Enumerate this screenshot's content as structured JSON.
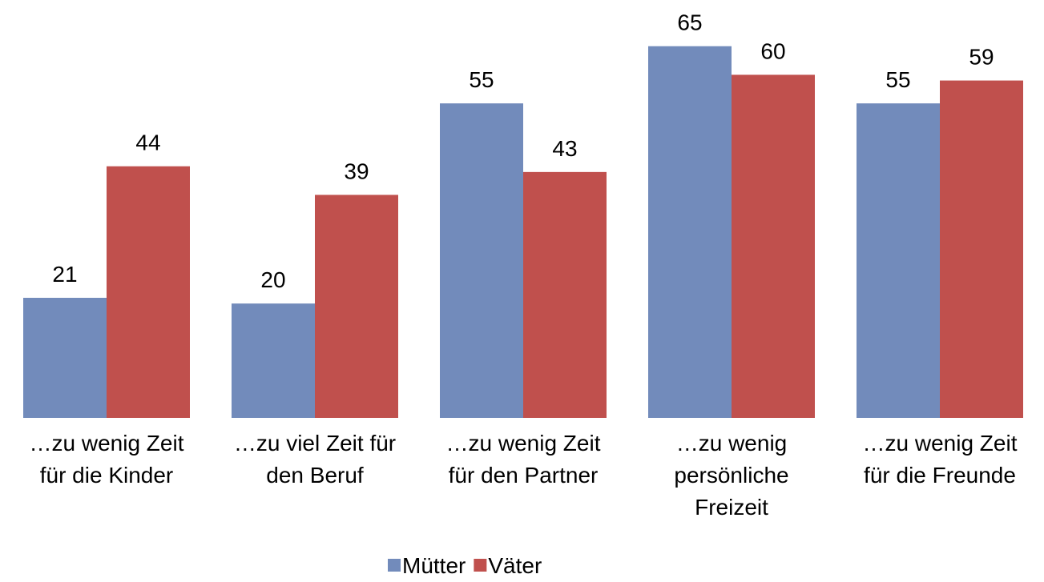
{
  "chart_data": {
    "type": "bar",
    "categories": [
      [
        "…zu wenig Zeit",
        "für die Kinder"
      ],
      [
        "…zu viel Zeit für",
        "den Beruf"
      ],
      [
        "…zu wenig Zeit",
        "für den Partner"
      ],
      [
        "…zu wenig",
        "persönliche",
        "Freizeit"
      ],
      [
        "…zu wenig Zeit",
        "für die Freunde"
      ]
    ],
    "series": [
      {
        "name": "Mütter",
        "color": "#728bbb",
        "values": [
          21,
          20,
          55,
          65,
          55
        ]
      },
      {
        "name": "Väter",
        "color": "#c0504d",
        "values": [
          44,
          39,
          43,
          60,
          59
        ]
      }
    ],
    "ylim": [
      0,
      70
    ],
    "legend": "bottom"
  }
}
